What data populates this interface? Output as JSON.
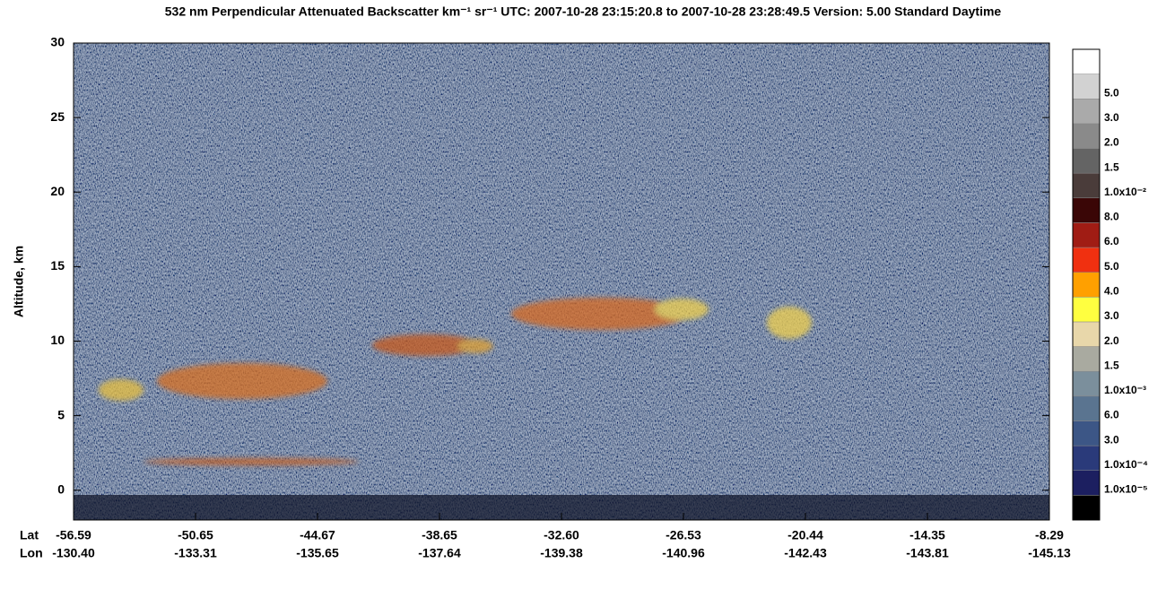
{
  "chart_data": {
    "type": "heatmap",
    "title": "532 nm Perpendicular Attenuated Backscatter km⁻¹ sr⁻¹  UTC: 2007-10-28 23:15:20.8 to 2007-10-28 23:28:49.5  Version: 5.00 Standard Daytime",
    "y_label": "Altitude, km",
    "ylim": [
      -2,
      30
    ],
    "yticks": [
      0,
      5,
      10,
      15,
      20,
      25,
      30
    ],
    "x_row_labels": [
      "Lat",
      "Lon"
    ],
    "lat": [
      "-56.59",
      "-50.65",
      "-44.67",
      "-38.65",
      "-32.60",
      "-26.53",
      "-20.44",
      "-14.35",
      "-8.29"
    ],
    "lon": [
      "-130.40",
      "-133.31",
      "-135.65",
      "-137.64",
      "-139.38",
      "-140.96",
      "-142.43",
      "-143.81",
      "-145.13"
    ],
    "colorbar": {
      "colors": [
        "#000000",
        "#1c1f60",
        "#2a3a7a",
        "#3c5686",
        "#5a7490",
        "#7b8f9c",
        "#a9aaa0",
        "#e8d7aa",
        "#ffff40",
        "#ffa000",
        "#f03010",
        "#a01c14",
        "#3a0606",
        "#4a3c3a",
        "#646464",
        "#8a8a8a",
        "#aaaaaa",
        "#d2d2d2",
        "#ffffff"
      ],
      "labels": [
        "1.0x10⁻⁵",
        "1.0x10⁻⁴",
        "3.0",
        "6.0",
        "1.0x10⁻³",
        "1.5",
        "2.0",
        "3.0",
        "4.0",
        "5.0",
        "6.0",
        "8.0",
        "1.0x10⁻²",
        "1.5",
        "2.0",
        "3.0",
        "5.0"
      ]
    }
  }
}
